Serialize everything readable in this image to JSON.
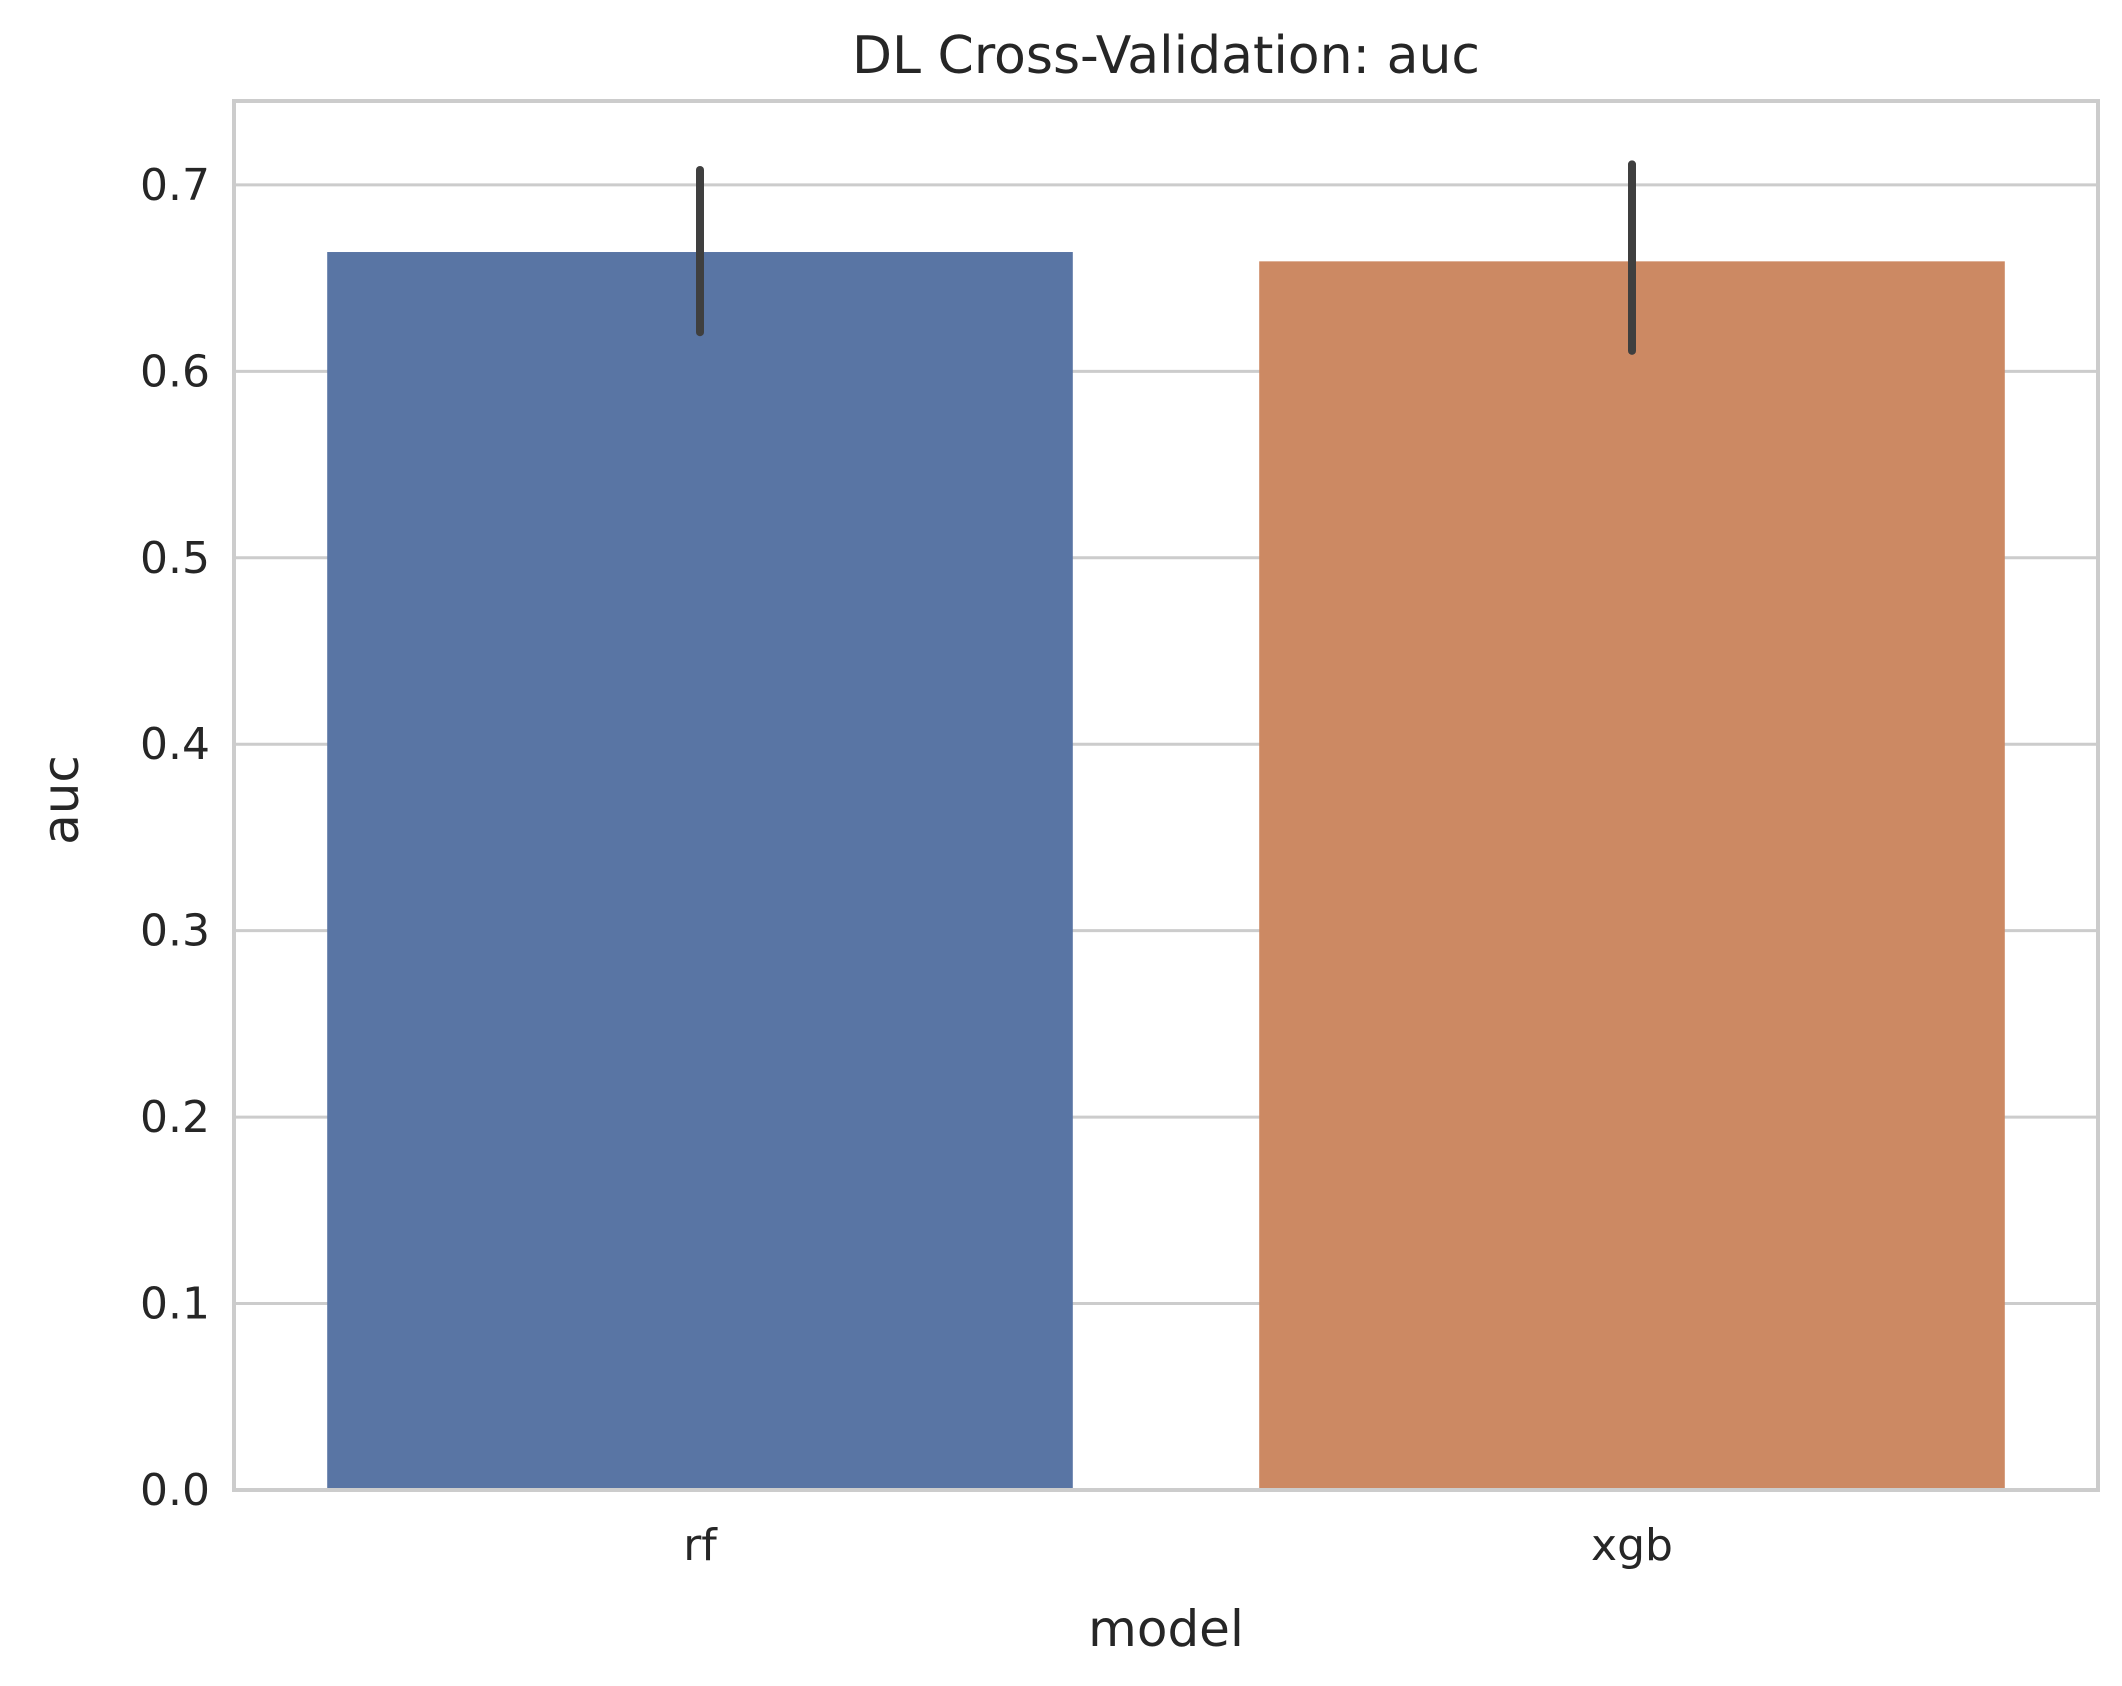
{
  "chart_data": {
    "type": "bar",
    "title": "DL Cross-Validation: auc",
    "xlabel": "model",
    "ylabel": "auc",
    "categories": [
      "rf",
      "xgb"
    ],
    "values": [
      0.664,
      0.659
    ],
    "error_bars": [
      {
        "low": 0.621,
        "high": 0.708
      },
      {
        "low": 0.611,
        "high": 0.711
      }
    ],
    "colors": [
      "#5975a4",
      "#cc8963"
    ],
    "ylim": [
      0,
      0.745
    ],
    "yticks": [
      0.0,
      0.1,
      0.2,
      0.3,
      0.4,
      0.5,
      0.6,
      0.7
    ],
    "ytick_labels": [
      "0.0",
      "0.1",
      "0.2",
      "0.3",
      "0.4",
      "0.5",
      "0.6",
      "0.7"
    ],
    "grid": "horizontal",
    "error_bar_color": "#3f3f3f",
    "grid_color": "#cccccc",
    "frame_color": "#cccccc"
  }
}
